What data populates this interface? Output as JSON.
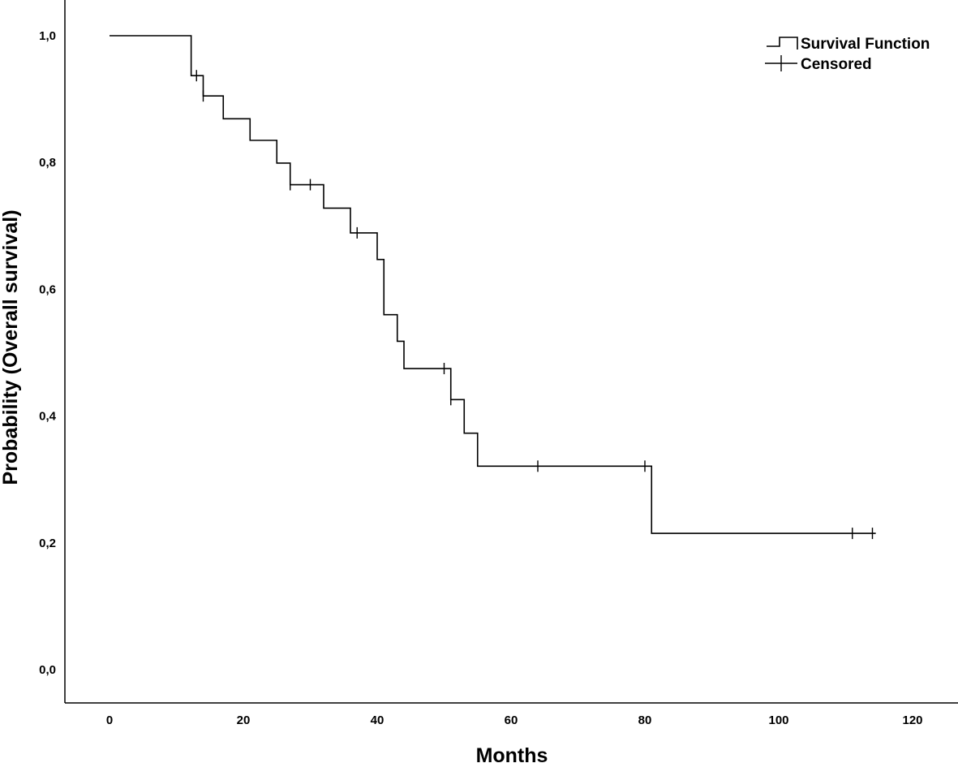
{
  "chart_data": {
    "type": "line",
    "subtype": "kaplan-meier",
    "title": "",
    "xlabel": "Months",
    "ylabel": "Probability (Overall survival)",
    "xlim": [
      -8,
      126
    ],
    "ylim": [
      -0.05,
      1.055
    ],
    "x_ticks": [
      0,
      20,
      40,
      60,
      80,
      100,
      120
    ],
    "y_ticks": [
      0.0,
      0.2,
      0.4,
      0.6,
      0.8,
      1.0
    ],
    "x_tick_labels": [
      "0",
      "20",
      "40",
      "60",
      "80",
      "100",
      "120"
    ],
    "y_tick_labels": [
      "0,0",
      "0,2",
      "0,4",
      "0,6",
      "0,8",
      "1,0"
    ],
    "grid": false,
    "legend_position": "top-right",
    "legend": [
      {
        "label": "Survival Function",
        "kind": "step-line"
      },
      {
        "label": "Censored",
        "kind": "censor-mark"
      }
    ],
    "series": [
      {
        "name": "Survival Function",
        "steps": [
          {
            "x": 0,
            "y": 1.0
          },
          {
            "x": 12.2,
            "y": 0.937
          },
          {
            "x": 14,
            "y": 0.905
          },
          {
            "x": 17,
            "y": 0.869
          },
          {
            "x": 21,
            "y": 0.835
          },
          {
            "x": 25,
            "y": 0.799
          },
          {
            "x": 27,
            "y": 0.765
          },
          {
            "x": 32,
            "y": 0.728
          },
          {
            "x": 36,
            "y": 0.689
          },
          {
            "x": 40,
            "y": 0.647
          },
          {
            "x": 41,
            "y": 0.56
          },
          {
            "x": 43,
            "y": 0.518
          },
          {
            "x": 44,
            "y": 0.475
          },
          {
            "x": 51,
            "y": 0.426
          },
          {
            "x": 53,
            "y": 0.373
          },
          {
            "x": 55,
            "y": 0.321
          },
          {
            "x": 81,
            "y": 0.215
          }
        ],
        "end_x": 114.5,
        "censored": [
          {
            "x": 13,
            "y": 0.937
          },
          {
            "x": 14,
            "y": 0.905
          },
          {
            "x": 27,
            "y": 0.765
          },
          {
            "x": 30,
            "y": 0.765
          },
          {
            "x": 37,
            "y": 0.689
          },
          {
            "x": 50,
            "y": 0.475
          },
          {
            "x": 51,
            "y": 0.426
          },
          {
            "x": 64,
            "y": 0.321
          },
          {
            "x": 80,
            "y": 0.321
          },
          {
            "x": 111,
            "y": 0.215
          },
          {
            "x": 114,
            "y": 0.215
          }
        ]
      }
    ]
  }
}
